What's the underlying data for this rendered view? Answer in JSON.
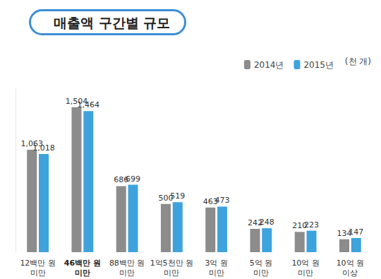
{
  "chart_data": {
    "type": "bar",
    "title": "매출액 구간별 규모",
    "annotation": "(천 개)",
    "categories": [
      "12백만 원\n미만",
      "46백만 원\n미만",
      "88백만 원\n미만",
      "1억5천만 원\n미만",
      "3억 원\n미만",
      "5억 원\n미만",
      "10억 원\n미만",
      "10억 원\n이상"
    ],
    "series": [
      {
        "name": "2014년",
        "color": "#8c8c8c",
        "values": [
          1063,
          1504,
          686,
          500,
          463,
          242,
          210,
          134
        ],
        "value_labels": [
          "1,063",
          "1,504",
          "686",
          "500",
          "463",
          "242",
          "210",
          "134"
        ]
      },
      {
        "name": "2015년",
        "color": "#3ea3dd",
        "values": [
          1018,
          1464,
          699,
          519,
          473,
          248,
          223,
          147
        ],
        "value_labels": [
          "1,018",
          "1,464",
          "699",
          "519",
          "473",
          "248",
          "223",
          "147"
        ]
      }
    ],
    "ylim": [
      0,
      1700
    ],
    "grid": false,
    "legend": "top-right",
    "data_labels": true,
    "tick_labels": "x"
  }
}
